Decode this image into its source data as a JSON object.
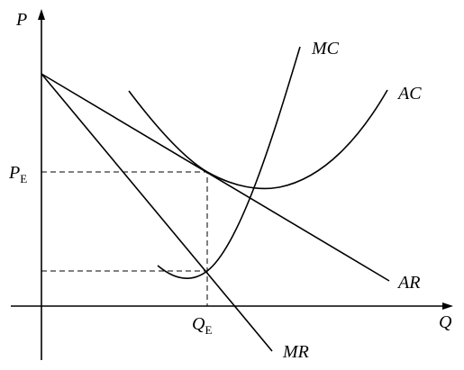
{
  "axes": {
    "y_label": "P",
    "x_label": "Q"
  },
  "markers": {
    "price": {
      "main": "P",
      "sub": "E"
    },
    "quantity": {
      "main": "Q",
      "sub": "E"
    }
  },
  "curves": {
    "mc": "MC",
    "ac": "AC",
    "ar": "AR",
    "mr": "MR"
  }
}
